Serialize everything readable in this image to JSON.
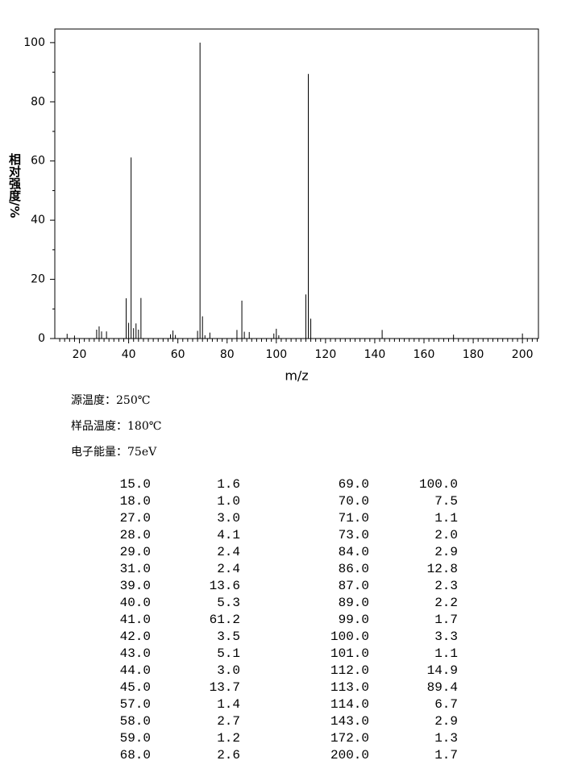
{
  "chart_data": {
    "type": "bar",
    "xlabel": "m/z",
    "ylabel": "相对强度/%",
    "color": "#000000",
    "xlim": [
      10,
      206.5
    ],
    "ylim": [
      0,
      104.6
    ],
    "xticks": [
      20,
      40,
      60,
      80,
      100,
      120,
      140,
      160,
      180,
      200
    ],
    "xminorticks": [
      12,
      14,
      16,
      18,
      22,
      24,
      26,
      28,
      30,
      32,
      34,
      36,
      38,
      42,
      44,
      46,
      48,
      50,
      52,
      54,
      56,
      58,
      62,
      64,
      66,
      68,
      70,
      72,
      74,
      76,
      78,
      82,
      84,
      86,
      88,
      90,
      92,
      94,
      96,
      98,
      102,
      104,
      106,
      108,
      110,
      112,
      114,
      116,
      118,
      122,
      124,
      126,
      128,
      130,
      132,
      134,
      136,
      138,
      142,
      144,
      146,
      148,
      150,
      152,
      154,
      156,
      158,
      162,
      164,
      166,
      168,
      170,
      172,
      174,
      176,
      178,
      182,
      184,
      186,
      188,
      190,
      192,
      194,
      196,
      198,
      202,
      204,
      206
    ],
    "yticks": [
      0,
      20,
      40,
      60,
      80,
      100
    ],
    "yminorticks": [
      10,
      30,
      50,
      70,
      90
    ],
    "x": [
      15,
      18,
      27,
      28,
      29,
      31,
      39,
      40,
      41,
      42,
      43,
      44,
      45,
      57,
      58,
      59,
      68,
      69,
      70,
      71,
      73,
      84,
      86,
      87,
      89,
      99,
      100,
      101,
      112,
      113,
      114,
      143,
      172,
      200
    ],
    "x_labels": [
      "15.0",
      "18.0",
      "27.0",
      "28.0",
      "29.0",
      "31.0",
      "39.0",
      "40.0",
      "41.0",
      "42.0",
      "43.0",
      "44.0",
      "45.0",
      "57.0",
      "58.0",
      "59.0",
      "68.0",
      "69.0",
      "70.0",
      "71.0",
      "73.0",
      "84.0",
      "86.0",
      "87.0",
      "89.0",
      "99.0",
      "100.0",
      "101.0",
      "112.0",
      "113.0",
      "114.0",
      "143.0",
      "172.0",
      "200.0"
    ],
    "values": [
      1.6,
      1.0,
      3.0,
      4.1,
      2.4,
      2.4,
      13.6,
      5.3,
      61.2,
      3.5,
      5.1,
      3.0,
      13.7,
      1.4,
      2.7,
      1.2,
      2.6,
      100,
      7.5,
      1.1,
      2.0,
      2.9,
      12.8,
      2.3,
      2.2,
      1.7,
      3.3,
      1.1,
      14.9,
      89.4,
      6.7,
      2.9,
      1.3,
      1.7
    ],
    "value_labels": [
      "1.6",
      "1.0",
      "3.0",
      "4.1",
      "2.4",
      "2.4",
      "13.6",
      "5.3",
      "61.2",
      "3.5",
      "5.1",
      "3.0",
      "13.7",
      "1.4",
      "2.7",
      "1.2",
      "2.6",
      "100.0",
      "7.5",
      "1.1",
      "2.0",
      "2.9",
      "12.8",
      "2.3",
      "2.2",
      "1.7",
      "3.3",
      "1.1",
      "14.9",
      "89.4",
      "6.7",
      "2.9",
      "1.3",
      "1.7"
    ]
  },
  "notes": [
    "源温度：250℃",
    "样品温度：180℃",
    "电子能量：75eV"
  ]
}
